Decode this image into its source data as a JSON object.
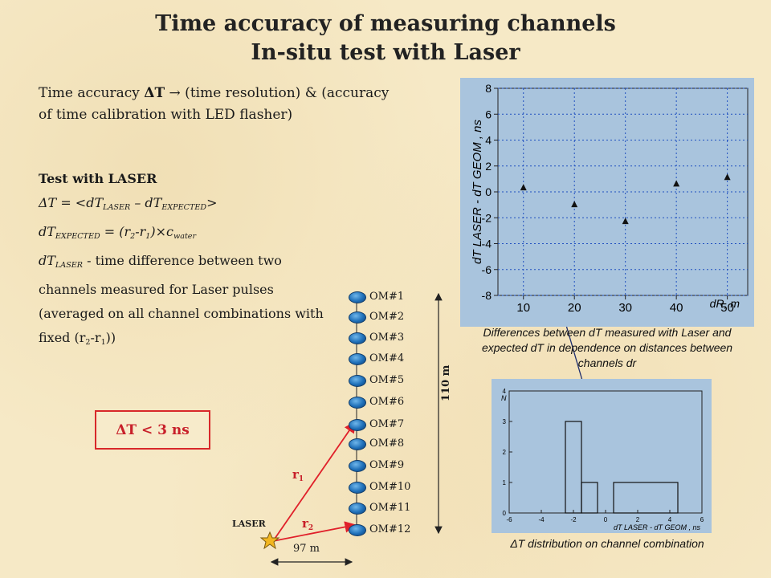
{
  "title": {
    "line1": "Time accuracy of measuring channels",
    "line2": "In-situ test with Laser"
  },
  "intro": {
    "text1": "Time accuracy ",
    "symbol": "ΔT",
    "arrow": "→",
    "text2": " (time resolution) & (accuracy",
    "text3": "of time calibration with LED flasher)"
  },
  "test": {
    "heading": "Test with LASER",
    "formula1": "ΔT = <dT",
    "formula1_sub1": "LASER",
    "formula1_mid": " – dT",
    "formula1_sub2": "EXPECTED",
    "formula1_end": ">",
    "formula2_a": "dT",
    "formula2_sub": "EXPECTED",
    "formula2_b": " = (r",
    "formula2_c": "2",
    "formula2_d": "-r",
    "formula2_e": "1",
    "formula2_f": ")×c",
    "formula2_g": "water",
    "line3_a": "dT",
    "line3_sub": "LASER",
    "line3_b": " - time difference between two",
    "line4": "channels measured for Laser pulses",
    "line5": "(averaged on all channel combinations with",
    "line6_a": "fixed (r",
    "line6_b": "2",
    "line6_c": "-r",
    "line6_d": "1",
    "line6_e": "))"
  },
  "result_box": {
    "text": "ΔT < 3 ns"
  },
  "om_labels": [
    "OM#1",
    "OM#2",
    "OM#3",
    "OM#4",
    "OM#5",
    "OM#6",
    "OM#7",
    "OM#8",
    "OM#9",
    "OM#10",
    "OM#11",
    "OM#12"
  ],
  "diagram": {
    "laser_label": "LASER",
    "r1": "r",
    "r1_sub": "1",
    "r2": "r",
    "r2_sub": "2",
    "horizontal_distance": "97 m",
    "vertical_distance": "110 m"
  },
  "colors": {
    "background": "#f6e9c6",
    "plot_bg": "#a9c4dd",
    "red_line": "#e0202a",
    "om_blue": "#1e6fb8",
    "result_border": "#d8282a"
  },
  "chart_data": [
    {
      "type": "scatter",
      "x": [
        10,
        20,
        30,
        40,
        50
      ],
      "y": [
        0.3,
        -1.0,
        -2.3,
        0.6,
        1.1
      ],
      "xlabel": "dR, m",
      "ylabel": "dT LASER - dT GEOM , ns",
      "xticks": [
        "10",
        "20",
        "30",
        "40",
        "50"
      ],
      "yticks": [
        "8",
        "6",
        "4",
        "2",
        "0",
        "-2",
        "-4",
        "-6",
        "-8"
      ],
      "xlim": [
        5,
        54
      ],
      "ylim": [
        -8,
        8
      ],
      "grid": true,
      "caption": "Differences between dT measured with Laser and expected dT in dependence on distances between channels dr"
    },
    {
      "type": "bar",
      "bins": [
        [
          -2.5,
          -1.5
        ],
        [
          -1.5,
          -0.5
        ],
        [
          0.5,
          4.5
        ]
      ],
      "values": [
        3,
        1,
        1
      ],
      "xlabel": "dT LASER - dT GEOM , ns",
      "ylabel": "N",
      "xticks": [
        "-6",
        "-4",
        "-2",
        "0",
        "2",
        "4",
        "6"
      ],
      "yticks": [
        "0",
        "1",
        "2",
        "3",
        "4"
      ],
      "xlim": [
        -6,
        6
      ],
      "ylim": [
        0,
        4
      ],
      "caption_symbol": "ΔT",
      "caption": " distribution on channel combination"
    }
  ]
}
